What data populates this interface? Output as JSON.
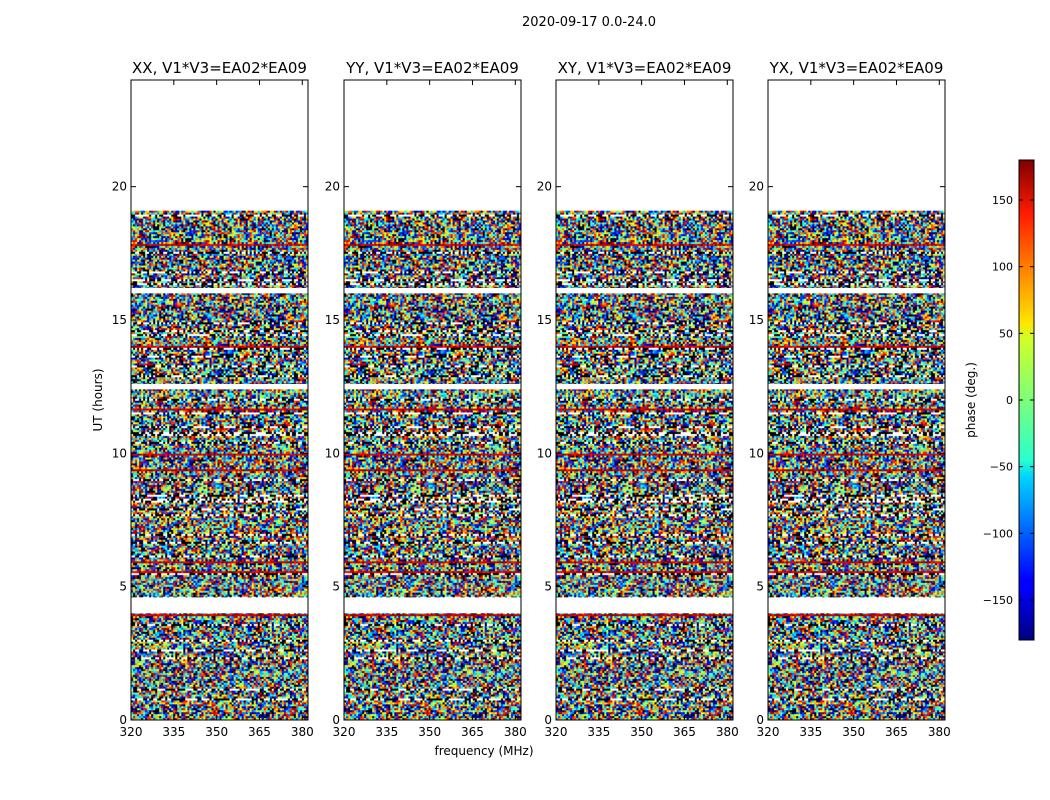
{
  "figure": {
    "suptitle": "2020-09-17 0.0-24.0"
  },
  "chart_data": {
    "type": "heatmap",
    "colormap": "jet",
    "x_label": "frequency (MHz)",
    "y_label": "UT (hours)",
    "x_range": [
      320,
      382
    ],
    "x_ticks": [
      "320",
      "335",
      "350",
      "365",
      "380"
    ],
    "y_range": [
      0,
      24
    ],
    "y_ticks": [
      "0",
      "5",
      "10",
      "15",
      "20"
    ],
    "colorbar": {
      "label": "phase (deg.)",
      "range": [
        -180,
        180
      ],
      "ticks": [
        "150",
        "100",
        "50",
        "0",
        "−50",
        "−100",
        "−150"
      ]
    },
    "panels": [
      {
        "title": "XX, V1*V3=EA02*EA09",
        "data_extent_hours": [
          0,
          19.1
        ],
        "gaps_hours": [
          [
            4.0,
            4.6
          ],
          [
            12.4,
            12.6
          ],
          [
            16.0,
            16.2
          ]
        ]
      },
      {
        "title": "YY, V1*V3=EA02*EA09",
        "data_extent_hours": [
          0,
          19.1
        ],
        "gaps_hours": [
          [
            4.0,
            4.6
          ],
          [
            12.4,
            12.6
          ],
          [
            16.0,
            16.2
          ]
        ]
      },
      {
        "title": "XY, V1*V3=EA02*EA09",
        "data_extent_hours": [
          0,
          19.1
        ],
        "gaps_hours": [
          [
            4.0,
            4.6
          ],
          [
            12.4,
            12.6
          ],
          [
            16.0,
            16.2
          ]
        ]
      },
      {
        "title": "YX, V1*V3=EA02*EA09",
        "data_extent_hours": [
          0,
          19.1
        ],
        "gaps_hours": [
          [
            4.0,
            4.6
          ],
          [
            12.4,
            12.6
          ],
          [
            16.0,
            16.2
          ]
        ]
      }
    ]
  }
}
